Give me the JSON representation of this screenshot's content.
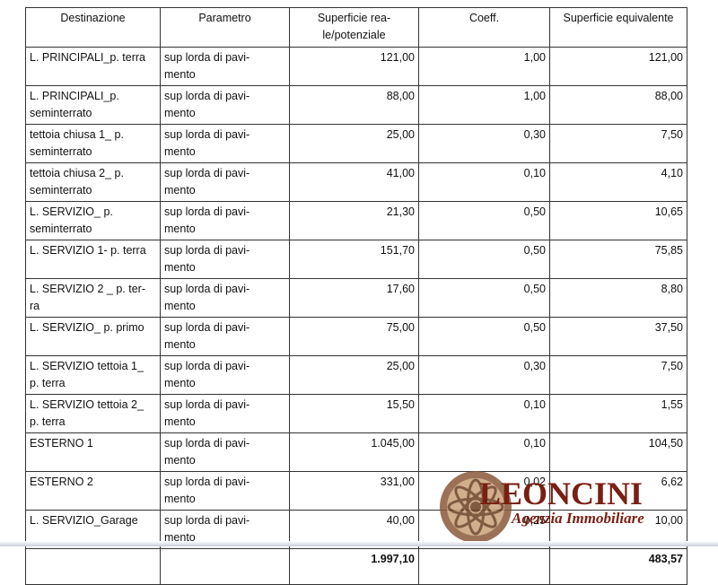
{
  "table": {
    "header": [
      "Destinazione",
      "Parametro",
      "Superficie rea-\nle/potenziale",
      "Coeff.",
      "Superficie equivalente"
    ],
    "rows": [
      [
        "L. PRINCIPALI_p. terra",
        "sup lorda di pavi-\nmento",
        "121,00",
        "1,00",
        "121,00"
      ],
      [
        "L. PRINCIPALI_p.\nseminterrato",
        "sup lorda di pavi-\nmento",
        "88,00",
        "1,00",
        "88,00"
      ],
      [
        "tettoia chiusa 1_ p.\nseminterrato",
        "sup lorda di pavi-\nmento",
        "25,00",
        "0,30",
        "7,50"
      ],
      [
        "tettoia chiusa 2_ p.\nseminterrato",
        "sup lorda di pavi-\nmento",
        "41,00",
        "0,10",
        "4,10"
      ],
      [
        "L. SERVIZIO_ p.\nseminterrato",
        "sup lorda di pavi-\nmento",
        "21,30",
        "0,50",
        "10,65"
      ],
      [
        "L. SERVIZIO 1- p. terra",
        "sup lorda di pavi-\nmento",
        "151,70",
        "0,50",
        "75,85"
      ],
      [
        "L. SERVIZIO 2 _ p. ter-\nra",
        "sup lorda di pavi-\nmento",
        "17,60",
        "0,50",
        "8,80"
      ],
      [
        "L. SERVIZIO_ p. primo",
        "sup lorda di pavi-\nmento",
        "75,00",
        "0,50",
        "37,50"
      ],
      [
        "L. SERVIZIO tettoia 1_\np. terra",
        "sup lorda di pavi-\nmento",
        "25,00",
        "0,30",
        "7,50"
      ],
      [
        "L. SERVIZIO tettoia 2_\np. terra",
        "sup lorda di pavi-\nmento",
        "15,50",
        "0,10",
        "1,55"
      ],
      [
        "ESTERNO 1",
        "sup lorda di pavi-\nmento",
        "1.045,00",
        "0,10",
        "104,50"
      ],
      [
        "ESTERNO 2",
        "sup lorda di pavi-\nmento",
        "331,00",
        "0,02",
        "6,62"
      ],
      [
        "L. SERVIZIO_Garage",
        "sup lorda di pavi-\nmento",
        "40,00",
        "0,25",
        "10,00"
      ]
    ],
    "total": {
      "surface": "1.997,10",
      "equivalent": "483,57"
    }
  },
  "watermark": {
    "name": "LEONCINI",
    "subtitle": "Agenzia Immobiliare"
  }
}
